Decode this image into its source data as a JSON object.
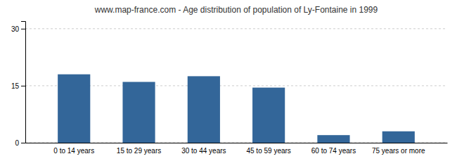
{
  "chart_data": {
    "type": "bar",
    "title": "www.map-france.com - Age distribution of population of Ly-Fontaine in 1999",
    "categories": [
      "0 to 14 years",
      "15 to 29 years",
      "30 to 44 years",
      "45 to 59 years",
      "60 to 74 years",
      "75 years or more"
    ],
    "values": [
      18,
      16,
      17.5,
      14.5,
      2,
      3
    ],
    "color": "#336699",
    "ylim": [
      0,
      32
    ],
    "yticks": [
      0,
      15,
      30
    ],
    "grid": true
  }
}
